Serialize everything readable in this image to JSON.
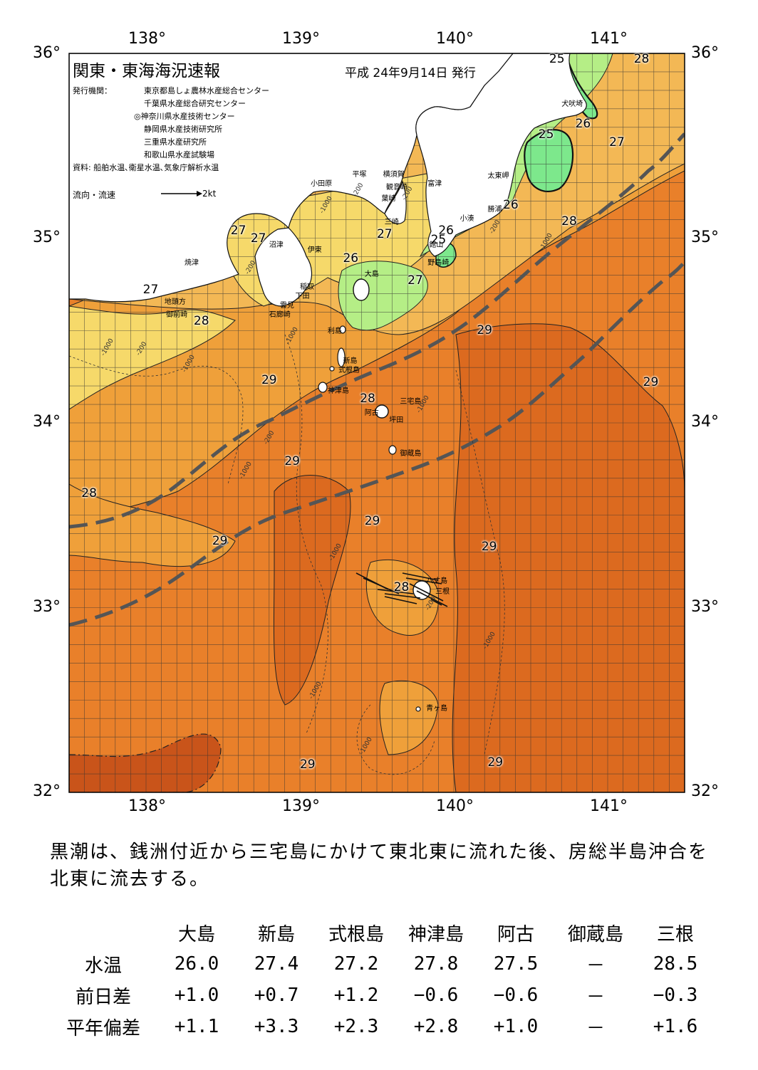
{
  "map": {
    "title": "関東・東海海況速報",
    "issue_date": "平成 24年9月14日 発行",
    "issuer_heading": "発行機関：",
    "issuers": [
      "東京都島しょ農林水産総合センター",
      "千葉県水産総合研究センター",
      "◎神奈川県水産技術センター",
      "静岡県水産技術研究所",
      "三重県水産研究所",
      "和歌山県水産試験場"
    ],
    "sources": "資料: 船舶水温､衛星水温､気象庁解析水温",
    "legend_label": "流向・流速",
    "legend_scale": "2kt",
    "lon_labels": [
      "138°",
      "139°",
      "140°",
      "141°"
    ],
    "lat_labels": [
      "36°",
      "35°",
      "34°",
      "33°",
      "32°"
    ],
    "colors": {
      "t25": "#7de88c",
      "t26": "#b5ee86",
      "t27": "#f6d96a",
      "t27b": "#f3b855",
      "t28": "#efa03a",
      "t29": "#e9802a",
      "t29b": "#dc6a1f",
      "t30": "#c9541a",
      "land": "#ffffff",
      "kuroshio": "#555555"
    },
    "temperature_labels": [
      {
        "text": "25",
        "lon": 140.67,
        "lat": 35.97
      },
      {
        "text": "28",
        "lon": 141.22,
        "lat": 35.97
      },
      {
        "text": "25",
        "lon": 140.6,
        "lat": 35.56
      },
      {
        "text": "26",
        "lon": 140.84,
        "lat": 35.62
      },
      {
        "text": "27",
        "lon": 141.06,
        "lat": 35.52
      },
      {
        "text": "26",
        "lon": 140.37,
        "lat": 35.18
      },
      {
        "text": "28",
        "lon": 140.75,
        "lat": 35.09
      },
      {
        "text": "26",
        "lon": 139.95,
        "lat": 35.04
      },
      {
        "text": "25",
        "lon": 139.9,
        "lat": 34.99
      },
      {
        "text": "27",
        "lon": 138.6,
        "lat": 35.04
      },
      {
        "text": "27",
        "lon": 138.73,
        "lat": 35.0
      },
      {
        "text": "27",
        "lon": 139.55,
        "lat": 35.02
      },
      {
        "text": "26",
        "lon": 139.33,
        "lat": 34.89
      },
      {
        "text": "27",
        "lon": 139.75,
        "lat": 34.77
      },
      {
        "text": "27",
        "lon": 138.03,
        "lat": 34.72
      },
      {
        "text": "28",
        "lon": 138.36,
        "lat": 34.55
      },
      {
        "text": "29",
        "lon": 140.2,
        "lat": 34.5
      },
      {
        "text": "29",
        "lon": 138.8,
        "lat": 34.23
      },
      {
        "text": "28",
        "lon": 139.44,
        "lat": 34.13
      },
      {
        "text": "29",
        "lon": 141.28,
        "lat": 34.22
      },
      {
        "text": "29",
        "lon": 138.95,
        "lat": 33.79
      },
      {
        "text": "28",
        "lon": 137.63,
        "lat": 33.62
      },
      {
        "text": "29",
        "lon": 139.47,
        "lat": 33.47
      },
      {
        "text": "29",
        "lon": 138.48,
        "lat": 33.36
      },
      {
        "text": "29",
        "lon": 140.23,
        "lat": 33.33
      },
      {
        "text": "28",
        "lon": 139.66,
        "lat": 33.11
      },
      {
        "text": "29",
        "lon": 139.05,
        "lat": 32.15
      },
      {
        "text": "29",
        "lon": 140.27,
        "lat": 32.16
      }
    ],
    "place_names": [
      {
        "text": "犬吠埼",
        "lon": 140.7,
        "lat": 35.76
      },
      {
        "text": "太東岬",
        "lon": 140.22,
        "lat": 35.37
      },
      {
        "text": "勝浦",
        "lon": 140.22,
        "lat": 35.19
      },
      {
        "text": "小湊",
        "lon": 140.04,
        "lat": 35.14
      },
      {
        "text": "富津",
        "lon": 139.83,
        "lat": 35.33
      },
      {
        "text": "横須賀",
        "lon": 139.54,
        "lat": 35.38
      },
      {
        "text": "観音崎",
        "lon": 139.56,
        "lat": 35.31
      },
      {
        "text": "平塚",
        "lon": 139.34,
        "lat": 35.38
      },
      {
        "text": "小田原",
        "lon": 139.07,
        "lat": 35.33
      },
      {
        "text": "葉崎",
        "lon": 139.53,
        "lat": 35.25
      },
      {
        "text": "三崎",
        "lon": 139.55,
        "lat": 35.12
      },
      {
        "text": "館山",
        "lon": 139.84,
        "lat": 35.0
      },
      {
        "text": "野島崎",
        "lon": 139.83,
        "lat": 34.9
      },
      {
        "text": "大島",
        "lon": 139.42,
        "lat": 34.84
      },
      {
        "text": "伊東",
        "lon": 139.05,
        "lat": 34.97
      },
      {
        "text": "沼津",
        "lon": 138.8,
        "lat": 35.0
      },
      {
        "text": "焼津",
        "lon": 138.25,
        "lat": 34.9
      },
      {
        "text": "稲取",
        "lon": 139.0,
        "lat": 34.77
      },
      {
        "text": "下田",
        "lon": 138.97,
        "lat": 34.72
      },
      {
        "text": "雲見",
        "lon": 138.87,
        "lat": 34.67
      },
      {
        "text": "石廊崎",
        "lon": 138.8,
        "lat": 34.62
      },
      {
        "text": "地頭方",
        "lon": 138.12,
        "lat": 34.69
      },
      {
        "text": "御前崎",
        "lon": 138.13,
        "lat": 34.62
      },
      {
        "text": "利島",
        "lon": 139.18,
        "lat": 34.53
      },
      {
        "text": "新島",
        "lon": 139.28,
        "lat": 34.37
      },
      {
        "text": "式根島",
        "lon": 139.25,
        "lat": 34.32
      },
      {
        "text": "神津島",
        "lon": 139.18,
        "lat": 34.21
      },
      {
        "text": "三宅島",
        "lon": 139.65,
        "lat": 34.15
      },
      {
        "text": "阿古",
        "lon": 139.42,
        "lat": 34.09
      },
      {
        "text": "坪田",
        "lon": 139.58,
        "lat": 34.05
      },
      {
        "text": "御蔵島",
        "lon": 139.65,
        "lat": 33.87
      },
      {
        "text": "八丈島",
        "lon": 139.82,
        "lat": 33.18
      },
      {
        "text": "三根",
        "lon": 139.88,
        "lat": 33.12
      },
      {
        "text": "青ヶ島",
        "lon": 139.82,
        "lat": 32.49
      }
    ],
    "depth_labels": [
      {
        "text": "-200",
        "lon": 139.38,
        "lat": 35.26
      },
      {
        "text": "-1000",
        "lon": 139.17,
        "lat": 35.18
      },
      {
        "text": "-200",
        "lon": 139.7,
        "lat": 35.24
      },
      {
        "text": "-200",
        "lon": 140.27,
        "lat": 35.06
      },
      {
        "text": "-1000",
        "lon": 140.6,
        "lat": 34.98
      },
      {
        "text": "-200",
        "lon": 138.68,
        "lat": 34.84
      },
      {
        "text": "-1000",
        "lon": 138.95,
        "lat": 34.47
      },
      {
        "text": "-1000",
        "lon": 137.75,
        "lat": 34.41
      },
      {
        "text": "-200",
        "lon": 137.97,
        "lat": 34.4
      },
      {
        "text": "-1000",
        "lon": 138.28,
        "lat": 34.32
      },
      {
        "text": "-1000",
        "lon": 139.8,
        "lat": 34.1
      },
      {
        "text": "-200",
        "lon": 138.8,
        "lat": 33.92
      },
      {
        "text": "-1000",
        "lon": 138.65,
        "lat": 33.74
      },
      {
        "text": "-1000",
        "lon": 139.23,
        "lat": 33.3
      },
      {
        "text": "-200",
        "lon": 139.85,
        "lat": 33.02
      },
      {
        "text": "-1000",
        "lon": 140.23,
        "lat": 32.82
      },
      {
        "text": "-1000",
        "lon": 139.1,
        "lat": 32.55
      },
      {
        "text": "-1000",
        "lon": 139.43,
        "lat": 32.25
      }
    ]
  },
  "summary_text": "黒潮は、銭洲付近から三宅島にかけて東北東に流れた後、房総半島沖合を北東に流去する。",
  "table": {
    "columns": [
      "大島",
      "新島",
      "式根島",
      "神津島",
      "阿古",
      "御蔵島",
      "三根"
    ],
    "rows": [
      {
        "label": "水温",
        "values": [
          "26.0",
          "27.4",
          "27.2",
          "27.8",
          "27.5",
          "－",
          "28.5"
        ]
      },
      {
        "label": "前日差",
        "values": [
          "+1.0",
          "+0.7",
          "+1.2",
          "−0.6",
          "−0.6",
          "－",
          "−0.3"
        ]
      },
      {
        "label": "平年偏差",
        "values": [
          "+1.1",
          "+3.3",
          "+2.3",
          "+2.8",
          "+1.0",
          "－",
          "+1.6"
        ]
      }
    ]
  }
}
